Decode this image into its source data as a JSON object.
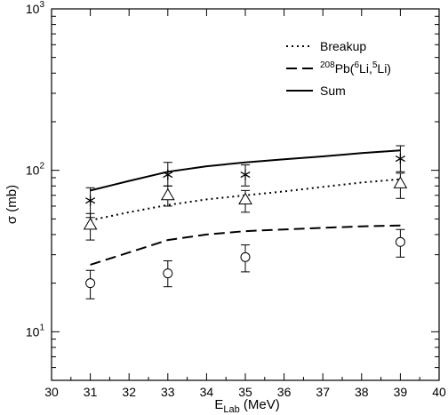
{
  "chart_data": {
    "type": "line",
    "title": "",
    "xlabel": "E",
    "xlabel_sub": "Lab",
    "xlabel_unit": " (MeV)",
    "ylabel": "σ (mb)",
    "xlim": [
      30,
      40
    ],
    "ylim": [
      5,
      1000
    ],
    "yscale": "log",
    "grid": false,
    "legend_placement": "top-right",
    "x_ticks": [
      30,
      31,
      32,
      33,
      34,
      35,
      36,
      37,
      38,
      39,
      40
    ],
    "y_ticks": [
      {
        "value": 10,
        "base": "10",
        "exp": "1"
      },
      {
        "value": 100,
        "base": "10",
        "exp": "2"
      },
      {
        "value": 1000,
        "base": "10",
        "exp": "3"
      }
    ],
    "lines": [
      {
        "name": "Breakup",
        "style": "dotted",
        "x": [
          31,
          32,
          33,
          34,
          35,
          36,
          37,
          38,
          39
        ],
        "y": [
          49,
          55,
          61,
          66,
          70,
          74,
          79,
          84,
          88
        ]
      },
      {
        "name": "208Pb(6Li,5Li)",
        "style": "dashed",
        "x": [
          31,
          32,
          33,
          34,
          35,
          36,
          37,
          38,
          39
        ],
        "y": [
          26,
          31,
          37,
          40,
          42,
          43,
          44,
          45,
          45.5
        ]
      },
      {
        "name": "Sum",
        "style": "solid",
        "x": [
          31,
          32,
          33,
          34,
          35,
          36,
          37,
          38,
          39
        ],
        "y": [
          75,
          86,
          98,
          106,
          112,
          117,
          122,
          128,
          133
        ]
      }
    ],
    "points": [
      {
        "marker": "star",
        "x": [
          31,
          33,
          35,
          39
        ],
        "y": [
          65,
          94,
          94,
          118
        ],
        "err_lo": [
          51,
          80,
          80,
          98
        ],
        "err_hi": [
          78,
          112,
          108,
          142
        ]
      },
      {
        "marker": "triangle",
        "x": [
          31,
          33,
          35,
          39
        ],
        "y": [
          46,
          70,
          66,
          83
        ],
        "err_lo": [
          37,
          60,
          55,
          67
        ],
        "err_hi": [
          54,
          80,
          75,
          96
        ]
      },
      {
        "marker": "circle",
        "x": [
          31,
          33,
          35,
          39
        ],
        "y": [
          20,
          23,
          29,
          36
        ],
        "err_lo": [
          16,
          19,
          23.5,
          29
        ],
        "err_hi": [
          24,
          27.5,
          34.5,
          43
        ]
      }
    ],
    "legend": [
      {
        "label": "Breakup",
        "style": "dotted"
      },
      {
        "label_parts": [
          "208",
          "Pb(",
          "6",
          "Li,",
          "5",
          "Li)"
        ],
        "style": "dashed"
      },
      {
        "label": "Sum",
        "style": "solid"
      }
    ]
  }
}
